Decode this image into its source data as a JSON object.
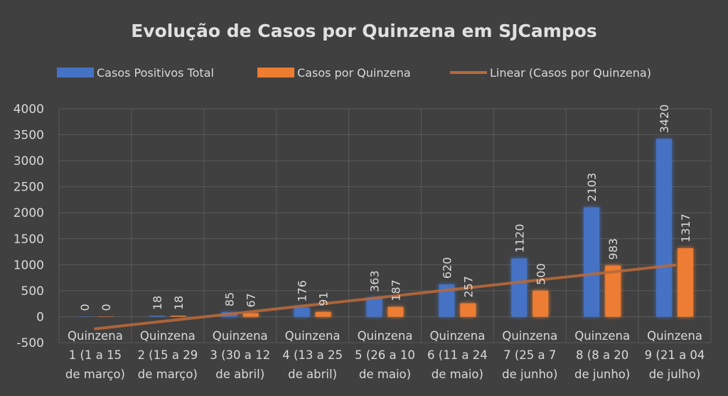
{
  "chart_data": {
    "type": "bar",
    "title": "Evolução de Casos por Quinzena em SJCampos",
    "xlabel": "",
    "ylabel": "",
    "ylim": [
      -500,
      4000
    ],
    "yticks": [
      -500,
      0,
      500,
      1000,
      1500,
      2000,
      2500,
      3000,
      3500,
      4000
    ],
    "grid": true,
    "legend_position": "top",
    "categories": [
      [
        "Quinzena",
        "1 (1 a 15",
        "de março)"
      ],
      [
        "Quinzena",
        "2 (15 a 29",
        "de março)"
      ],
      [
        "Quinzena",
        "3 (30 a 12",
        "de abril)"
      ],
      [
        "Quinzena",
        "4 (13 a 25",
        "de abril)"
      ],
      [
        "Quinzena",
        "5 (26 a 10",
        "de maio)"
      ],
      [
        "Quinzena",
        "6 (11 a 24",
        "de maio)"
      ],
      [
        "Quinzena",
        "7 (25 a 7",
        "de junho)"
      ],
      [
        "Quinzena",
        "8 (8 a 20",
        "de junho)"
      ],
      [
        "Quinzena",
        "9 (21 a 04",
        "de julho)"
      ]
    ],
    "series": [
      {
        "name": "Casos Positivos Total",
        "color": "#4472C4",
        "values": [
          0,
          18,
          85,
          176,
          363,
          620,
          1120,
          2103,
          3420
        ]
      },
      {
        "name": "Casos por Quinzena",
        "color": "#ED7D31",
        "values": [
          0,
          18,
          67,
          91,
          187,
          257,
          500,
          983,
          1317
        ]
      }
    ],
    "trendline": {
      "name": "Linear (Casos por Quinzena)",
      "of_series": 1,
      "type": "linear",
      "color": "#B8693A"
    }
  }
}
